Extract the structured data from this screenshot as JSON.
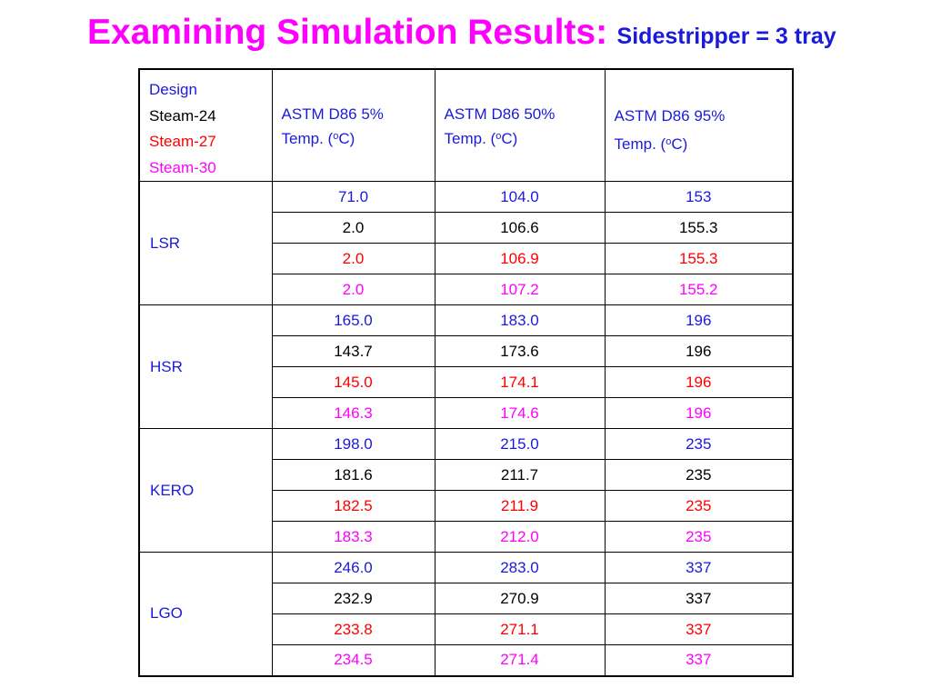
{
  "title": {
    "main": "Examining Simulation Results:",
    "sub": "Sidestripper = 3 tray"
  },
  "legend": {
    "design": "Design",
    "steam24": "Steam-24",
    "steam27": "Steam-27",
    "steam30": "Steam-30"
  },
  "headers": {
    "col5": {
      "line1": "ASTM D86 5%",
      "line2_pre": "Temp. (",
      "sup": "o",
      "line2_post": "C)"
    },
    "col50": {
      "line1": "ASTM D86 50%",
      "line2_pre": "Temp. (",
      "sup": "o",
      "line2_post": "C)"
    },
    "col95": {
      "line1": "ASTM D86 95%",
      "line2_pre": "Temp. (",
      "sup": "o",
      "line2_post": "C)"
    }
  },
  "colors": {
    "design": "#1a1adb",
    "steam24": "#000000",
    "steam27": "#ff0000",
    "steam30": "#ff00ff"
  },
  "groups": [
    {
      "name": "LSR",
      "rows": [
        [
          "71.0",
          "104.0",
          "153"
        ],
        [
          "2.0",
          "106.6",
          "155.3"
        ],
        [
          "2.0",
          "106.9",
          "155.3"
        ],
        [
          "2.0",
          "107.2",
          "155.2"
        ]
      ]
    },
    {
      "name": "HSR",
      "rows": [
        [
          "165.0",
          "183.0",
          "196"
        ],
        [
          "143.7",
          "173.6",
          "196"
        ],
        [
          "145.0",
          "174.1",
          "196"
        ],
        [
          "146.3",
          "174.6",
          "196"
        ]
      ]
    },
    {
      "name": "KERO",
      "rows": [
        [
          "198.0",
          "215.0",
          "235"
        ],
        [
          "181.6",
          "211.7",
          "235"
        ],
        [
          "182.5",
          "211.9",
          "235"
        ],
        [
          "183.3",
          "212.0",
          "235"
        ]
      ]
    },
    {
      "name": "LGO",
      "rows": [
        [
          "246.0",
          "283.0",
          "337"
        ],
        [
          "232.9",
          "270.9",
          "337"
        ],
        [
          "233.8",
          "271.1",
          "337"
        ],
        [
          "234.5",
          "271.4",
          "337"
        ]
      ]
    }
  ]
}
